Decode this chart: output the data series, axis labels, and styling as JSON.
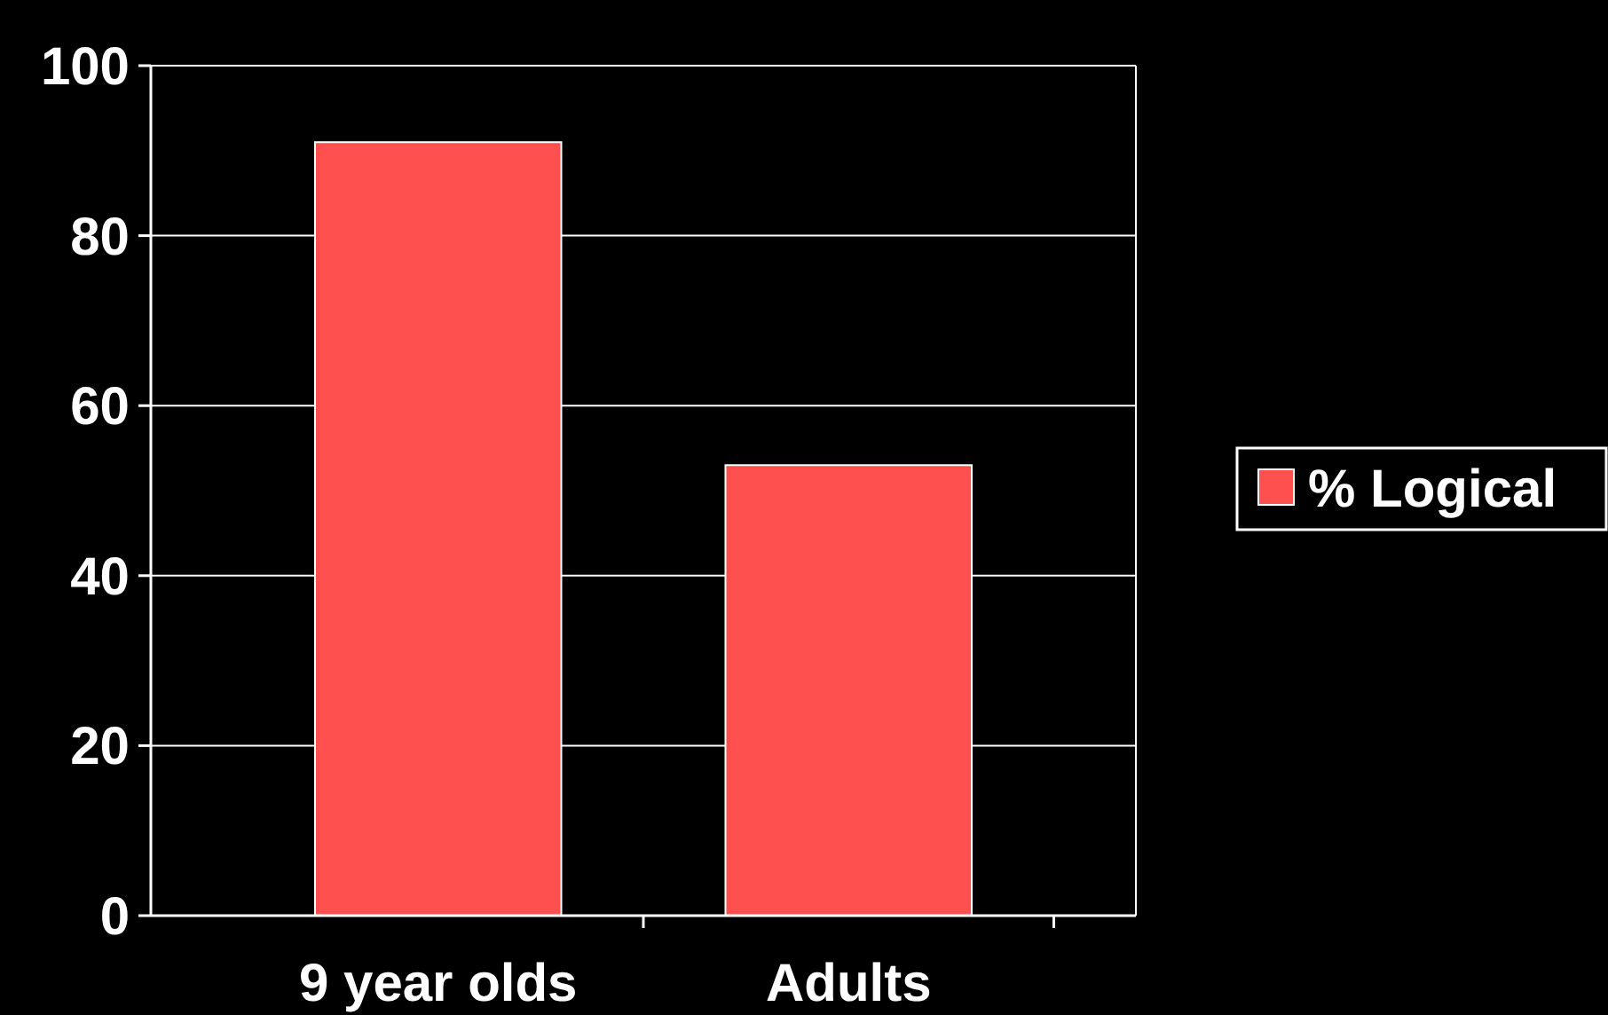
{
  "chart_data": {
    "type": "bar",
    "categories": [
      "9 year olds",
      "Adults"
    ],
    "series": [
      {
        "name": "% Logical",
        "color": "#ff5050",
        "values": [
          91,
          53
        ]
      }
    ],
    "ylim": [
      0,
      100
    ],
    "yticks": [
      0,
      20,
      40,
      60,
      80,
      100
    ],
    "grid": "y",
    "legend": "right"
  }
}
